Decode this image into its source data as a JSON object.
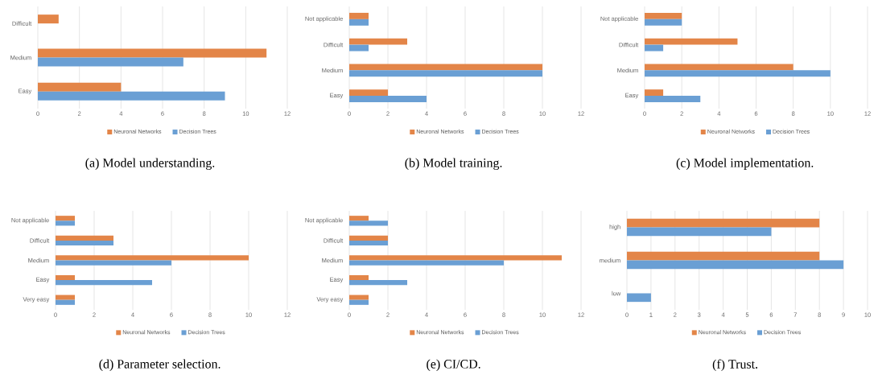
{
  "chart_data": [
    {
      "type": "bar",
      "orientation": "horizontal",
      "title": "(a) Model understanding.",
      "categories": [
        "Difficult",
        "Medium",
        "Easy"
      ],
      "series": [
        {
          "name": "Neuronal Networks",
          "color": "#e38548",
          "values": [
            1,
            11,
            4
          ]
        },
        {
          "name": "Decision Trees",
          "color": "#6a9fd4",
          "values": [
            0,
            7,
            9
          ]
        }
      ],
      "xlim": [
        0,
        12
      ],
      "xticks": [
        0,
        2,
        4,
        6,
        8,
        10,
        12
      ],
      "grid": "x",
      "legend": "bottom"
    },
    {
      "type": "bar",
      "orientation": "horizontal",
      "title": "(b) Model training.",
      "categories": [
        "Not applicable",
        "Difficult",
        "Medium",
        "Easy"
      ],
      "series": [
        {
          "name": "Neuronal Networks",
          "color": "#e38548",
          "values": [
            1,
            3,
            10,
            2
          ]
        },
        {
          "name": "Decision Trees",
          "color": "#6a9fd4",
          "values": [
            1,
            1,
            10,
            4
          ]
        }
      ],
      "xlim": [
        0,
        12
      ],
      "xticks": [
        0,
        2,
        4,
        6,
        8,
        10,
        12
      ],
      "grid": "x",
      "legend": "bottom"
    },
    {
      "type": "bar",
      "orientation": "horizontal",
      "title": "(c) Model implementation.",
      "categories": [
        "Not applicable",
        "Difficult",
        "Medium",
        "Easy"
      ],
      "series": [
        {
          "name": "Neuronal Networks",
          "color": "#e38548",
          "values": [
            2,
            5,
            8,
            1
          ]
        },
        {
          "name": "Decision Trees",
          "color": "#6a9fd4",
          "values": [
            2,
            1,
            10,
            3
          ]
        }
      ],
      "xlim": [
        0,
        12
      ],
      "xticks": [
        0,
        2,
        4,
        6,
        8,
        10,
        12
      ],
      "grid": "x",
      "legend": "bottom"
    },
    {
      "type": "bar",
      "orientation": "horizontal",
      "title": "(d) Parameter selection.",
      "categories": [
        "Not applicable",
        "Difficult",
        "Medium",
        "Easy",
        "Very easy"
      ],
      "series": [
        {
          "name": "Neuronal Networks",
          "color": "#e38548",
          "values": [
            1,
            3,
            10,
            1,
            1
          ]
        },
        {
          "name": "Decision Trees",
          "color": "#6a9fd4",
          "values": [
            1,
            3,
            6,
            5,
            1
          ]
        }
      ],
      "xlim": [
        0,
        12
      ],
      "xticks": [
        0,
        2,
        4,
        6,
        8,
        10,
        12
      ],
      "grid": "x",
      "legend": "bottom"
    },
    {
      "type": "bar",
      "orientation": "horizontal",
      "title": "(e) CI/CD.",
      "categories": [
        "Not applicable",
        "Difficult",
        "Medium",
        "Easy",
        "Very easy"
      ],
      "series": [
        {
          "name": "Neuronal Networks",
          "color": "#e38548",
          "values": [
            1,
            2,
            11,
            1,
            1
          ]
        },
        {
          "name": "Decision Trees",
          "color": "#6a9fd4",
          "values": [
            2,
            2,
            8,
            3,
            1
          ]
        }
      ],
      "xlim": [
        0,
        12
      ],
      "xticks": [
        0,
        2,
        4,
        6,
        8,
        10,
        12
      ],
      "grid": "x",
      "legend": "bottom"
    },
    {
      "type": "bar",
      "orientation": "horizontal",
      "title": "(f) Trust.",
      "categories": [
        "high",
        "medium",
        "low"
      ],
      "series": [
        {
          "name": "Neuronal Networks",
          "color": "#e38548",
          "values": [
            8,
            8,
            0
          ]
        },
        {
          "name": "Decision Trees",
          "color": "#6a9fd4",
          "values": [
            6,
            9,
            1
          ]
        }
      ],
      "xlim": [
        0,
        10
      ],
      "xticks": [
        0,
        1,
        2,
        3,
        4,
        5,
        6,
        7,
        8,
        9,
        10
      ],
      "grid": "x",
      "legend": "bottom"
    }
  ]
}
